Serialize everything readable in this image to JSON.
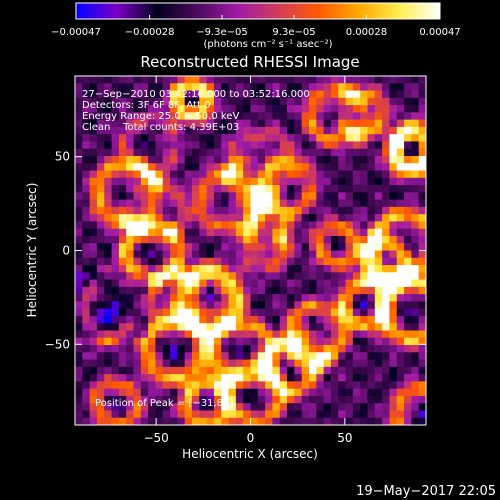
{
  "colorbar": {
    "tick_labels": [
      "−0.00047",
      "−0.00028",
      "−9.3e−05",
      "9.3e−05",
      "0.00028",
      "0.00047"
    ],
    "tick_values": [
      -0.00047,
      -0.00028,
      -9.3e-05,
      9.3e-05,
      0.00028,
      0.00047
    ],
    "range": [
      -0.00047,
      0.00047
    ],
    "units_label": "(photons cm⁻² s⁻¹ asec⁻²)",
    "colors": [
      "#0000ff",
      "#7a00c8",
      "#00001e",
      "#4b0a5a",
      "#a01aa8",
      "#d23c5a",
      "#ff5a00",
      "#ffaa00",
      "#ffee50",
      "#ffffff"
    ]
  },
  "chart_data": {
    "type": "heatmap",
    "title": "Reconstructed RHESSI Image",
    "xlabel": "Heliocentric X (arcsec)",
    "ylabel": "Heliocentric Y (arcsec)",
    "xlim": [
      -93,
      93
    ],
    "ylim": [
      -93,
      93
    ],
    "x_ticks": [
      -50,
      0,
      50
    ],
    "y_ticks": [
      -50,
      0,
      50
    ],
    "x_tick_labels": [
      "−50",
      "0",
      "50"
    ],
    "y_tick_labels": [
      "−50",
      "0",
      "50"
    ],
    "grid": false,
    "peak": [
      -31,
      80
    ],
    "annotations": {
      "time_range": "27−Sep−2010 03:42:16.000 to 03:52:16.000",
      "detectors": "Detectors: 3F 6F 8F, Att 0",
      "energy_range": "Energy Range: 25.0 − 50.0 keV",
      "clean": "Clean    Total counts: 4.39E+03",
      "peak_position": "Position of Peak = [−31,80]"
    }
  },
  "footer": {
    "timestamp": "19−May−2017 22:05"
  }
}
